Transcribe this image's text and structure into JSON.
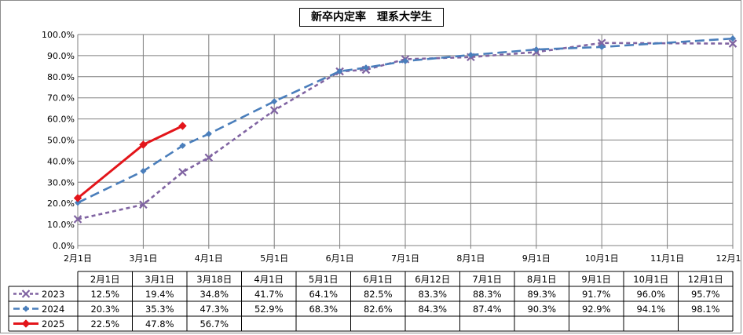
{
  "chart_data": {
    "type": "line",
    "title": "新卒内定率　理系大学生",
    "x_axis_labels": [
      "2月1日",
      "3月1日",
      "4月1日",
      "5月1日",
      "6月1日",
      "7月1日",
      "8月1日",
      "9月1日",
      "10月1日",
      "11月1日",
      "12月1日"
    ],
    "y_axis_labels": [
      "0.0%",
      "10.0%",
      "20.0%",
      "30.0%",
      "40.0%",
      "50.0%",
      "60.0%",
      "70.0%",
      "80.0%",
      "90.0%",
      "100.0%"
    ],
    "ylim": [
      0,
      100
    ],
    "grid": true,
    "table_columns": [
      "2月1日",
      "3月1日",
      "3月18日",
      "4月1日",
      "5月1日",
      "6月1日",
      "6月12日",
      "7月1日",
      "8月1日",
      "9月1日",
      "10月1日",
      "12月1日"
    ],
    "x_positions": [
      0,
      1,
      1.6,
      2,
      3,
      4,
      4.4,
      5,
      6,
      7,
      8,
      10
    ],
    "series": [
      {
        "name": "2023",
        "color": "#8064a2",
        "marker": "x",
        "dash": "short-dash",
        "values": [
          12.5,
          19.4,
          34.8,
          41.7,
          64.1,
          82.5,
          83.3,
          88.3,
          89.3,
          91.7,
          96.0,
          95.7
        ],
        "labels": [
          "12.5%",
          "19.4%",
          "34.8%",
          "41.7%",
          "64.1%",
          "82.5%",
          "83.3%",
          "88.3%",
          "89.3%",
          "91.7%",
          "96.0%",
          "95.7%"
        ]
      },
      {
        "name": "2024",
        "color": "#4a7ebb",
        "marker": "diamond",
        "dash": "long-dash",
        "values": [
          20.3,
          35.3,
          47.3,
          52.9,
          68.3,
          82.6,
          84.3,
          87.4,
          90.3,
          92.9,
          94.1,
          98.1
        ],
        "labels": [
          "20.3%",
          "35.3%",
          "47.3%",
          "52.9%",
          "68.3%",
          "82.6%",
          "84.3%",
          "87.4%",
          "90.3%",
          "92.9%",
          "94.1%",
          "98.1%"
        ]
      },
      {
        "name": "2025",
        "color": "#e3151a",
        "marker": "diamond",
        "dash": "solid",
        "values": [
          22.5,
          47.8,
          56.7
        ],
        "labels": [
          "22.5%",
          "47.8%",
          "56.7%"
        ]
      }
    ]
  }
}
